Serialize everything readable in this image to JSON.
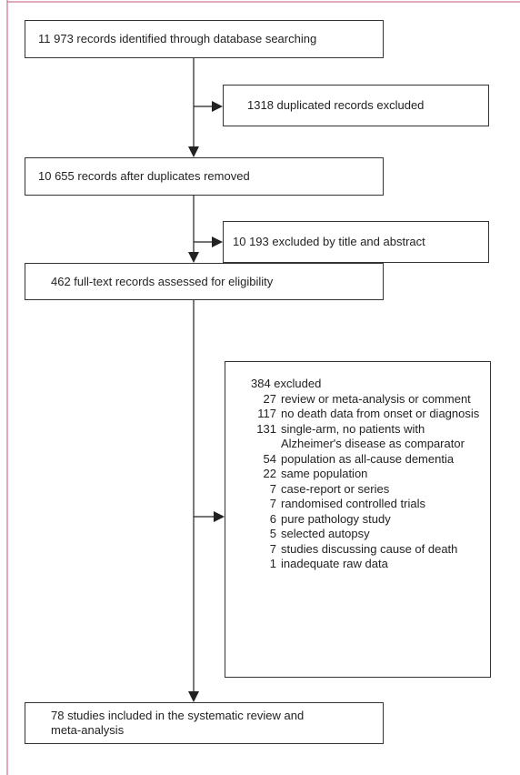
{
  "nodes": [
    {
      "label": "11 973 records identified through database searching"
    },
    {
      "label": "1318 duplicated records excluded"
    },
    {
      "label": "10 655 records after duplicates removed"
    },
    {
      "label": "10 193 excluded by title and abstract"
    },
    {
      "label": "462 full-text records assessed for eligibility"
    },
    {
      "label": "78 studies included in the systematic review and meta-analysis"
    }
  ],
  "exclusions": {
    "header": "384 excluded",
    "items": [
      {
        "count": "27",
        "reason": "review or meta-analysis or comment"
      },
      {
        "count": "117",
        "reason": "no death data from onset or diagnosis"
      },
      {
        "count": "131",
        "reason": "single-arm, no patients with Alzheimer's disease as comparator"
      },
      {
        "count": "54",
        "reason": "population as all-cause dementia"
      },
      {
        "count": "22",
        "reason": "same population"
      },
      {
        "count": "7",
        "reason": "case-report or series"
      },
      {
        "count": "7",
        "reason": "randomised controlled trials"
      },
      {
        "count": "6",
        "reason": "pure pathology study"
      },
      {
        "count": "5",
        "reason": "selected autopsy"
      },
      {
        "count": "7",
        "reason": "studies discussing cause of death"
      },
      {
        "count": "1",
        "reason": "inadequate raw data"
      }
    ]
  }
}
